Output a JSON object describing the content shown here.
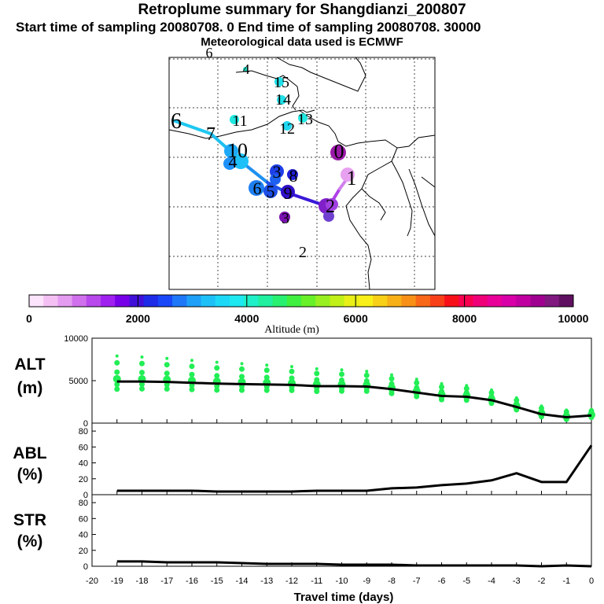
{
  "header": {
    "title": "Retroplume summary for Shangdianzi_200807",
    "subtitle": "Start time of sampling 20080708.     0     End time of sampling 20080708. 30000",
    "met_line": "Meteorological data used is ECMWF"
  },
  "colorbar": {
    "colors": [
      "#fce4fc",
      "#f4c0f4",
      "#e49cf0",
      "#d070ec",
      "#b848ec",
      "#a020f0",
      "#7800e8",
      "#4010d8",
      "#1e2ce8",
      "#1848f8",
      "#1e78f8",
      "#1ea0f8",
      "#1ec0f8",
      "#1ed8f8",
      "#1ee8f0",
      "#20f0c8",
      "#20f0a0",
      "#28f070",
      "#40f040",
      "#68f028",
      "#98f020",
      "#c0f018",
      "#e8f018",
      "#f8f018",
      "#f8d018",
      "#f8b018",
      "#f89018",
      "#f86818",
      "#f84018",
      "#f81018",
      "#f80050",
      "#f00078",
      "#e80098",
      "#d800a8",
      "#c000a0",
      "#a00090",
      "#801880",
      "#601060"
    ],
    "ticks": [
      "0",
      "2000",
      "4000",
      "6000",
      "8000",
      "10000"
    ],
    "label": "Altitude (m)"
  },
  "map": {
    "numbers": [
      {
        "text": "6",
        "color": "#000000",
        "size": 18
      },
      {
        "text": "4",
        "color": "#000000",
        "size": 18
      },
      {
        "text": "15",
        "color": "#000000",
        "size": 20
      },
      {
        "text": "14",
        "color": "#000000",
        "size": 20
      },
      {
        "text": "13",
        "color": "#000000",
        "size": 20
      },
      {
        "text": "12",
        "color": "#000000",
        "size": 20
      },
      {
        "text": "11",
        "color": "#000000",
        "size": 20
      },
      {
        "text": "6",
        "color": "#000000",
        "size": 28
      },
      {
        "text": "7",
        "color": "#000000",
        "size": 24
      },
      {
        "text": "10",
        "color": "#000000",
        "size": 26
      },
      {
        "text": "4",
        "color": "#000000",
        "size": 22
      },
      {
        "text": "3",
        "color": "#000000",
        "size": 22
      },
      {
        "text": "8",
        "color": "#000000",
        "size": 22
      },
      {
        "text": "6",
        "color": "#000000",
        "size": 22
      },
      {
        "text": "5",
        "color": "#000000",
        "size": 22
      },
      {
        "text": "9",
        "color": "#000000",
        "size": 22
      },
      {
        "text": "0",
        "color": "#000000",
        "size": 26
      },
      {
        "text": "1",
        "color": "#000000",
        "size": 26
      },
      {
        "text": "2",
        "color": "#000000",
        "size": 24
      },
      {
        "text": "3",
        "color": "#000000",
        "size": 20
      },
      {
        "text": "2",
        "color": "#000000",
        "size": 20
      }
    ]
  },
  "chart_data": [
    {
      "type": "line",
      "name": "ALT",
      "ylabel": "ALT",
      "yunit": "(m)",
      "ylim": [
        0,
        10000
      ],
      "yticks": [
        0,
        5000,
        10000
      ],
      "xlim": [
        -20,
        0
      ],
      "x": [
        -19,
        -18,
        -17,
        -16,
        -15,
        -14,
        -13,
        -12,
        -11,
        -10,
        -9,
        -8,
        -7,
        -6,
        -5,
        -4,
        -3,
        -2,
        -1,
        0
      ],
      "values": [
        4900,
        4900,
        4850,
        4750,
        4650,
        4600,
        4550,
        4500,
        4350,
        4350,
        4300,
        4000,
        3600,
        3200,
        3100,
        2700,
        1900,
        1050,
        700,
        900
      ]
    },
    {
      "type": "line",
      "name": "ABL",
      "ylabel": "ABL",
      "yunit": "(%)",
      "ylim": [
        0,
        90
      ],
      "yticks": [
        0,
        20,
        40,
        60,
        80
      ],
      "xlim": [
        -20,
        0
      ],
      "x": [
        -19,
        -18,
        -17,
        -16,
        -15,
        -14,
        -13,
        -12,
        -11,
        -10,
        -9,
        -8,
        -7,
        -6,
        -5,
        -4,
        -3,
        -2,
        -1,
        0
      ],
      "values": [
        5,
        5,
        5,
        5,
        4,
        4,
        4,
        4,
        5,
        5,
        5,
        8,
        9,
        12,
        14,
        18,
        27,
        16,
        16,
        62
      ]
    },
    {
      "type": "line",
      "name": "STR",
      "ylabel": "STR",
      "yunit": "(%)",
      "ylim": [
        0,
        90
      ],
      "yticks": [
        0,
        20,
        40,
        60,
        80
      ],
      "xlim": [
        -20,
        0
      ],
      "xticks": [
        -20,
        -19,
        -18,
        -17,
        -16,
        -15,
        -14,
        -13,
        -12,
        -11,
        -10,
        -9,
        -8,
        -7,
        -6,
        -5,
        -4,
        -3,
        -2,
        -1,
        0
      ],
      "xlabel": "Travel time (days)",
      "x": [
        -19,
        -18,
        -17,
        -16,
        -15,
        -14,
        -13,
        -12,
        -11,
        -10,
        -9,
        -8,
        -7,
        -6,
        -5,
        -4,
        -3,
        -2,
        -1,
        0
      ],
      "values": [
        6,
        6,
        5,
        5,
        5,
        4,
        3,
        3,
        3,
        2,
        2,
        2,
        1,
        1,
        1,
        1,
        1,
        0,
        1,
        0
      ]
    }
  ]
}
